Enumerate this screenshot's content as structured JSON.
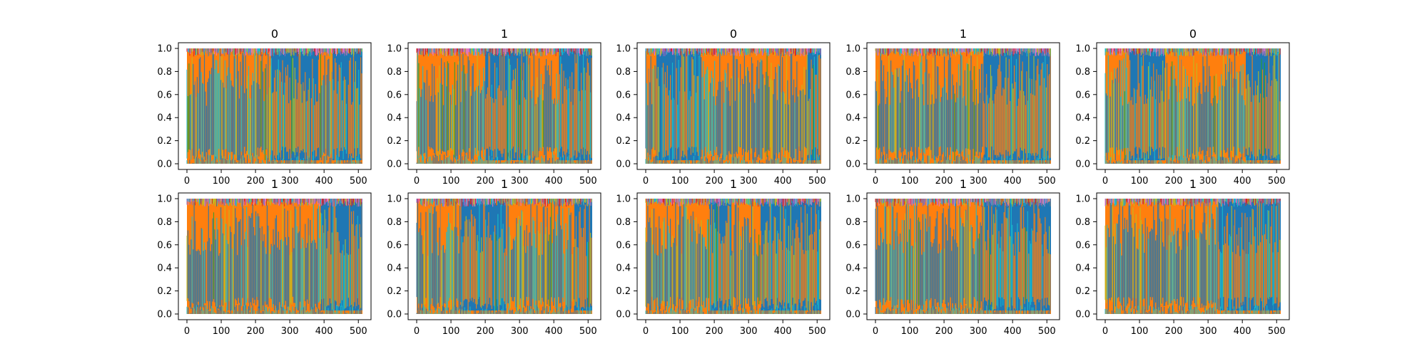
{
  "chart_data": {
    "type": "line",
    "layout": "2x5 grid of small multiples",
    "description_free": true,
    "y_range": [
      0,
      1.05
    ],
    "x_range": [
      -25,
      537
    ],
    "y_ticks": [
      "0.0",
      "0.2",
      "0.4",
      "0.6",
      "0.8",
      "1.0"
    ],
    "x_ticks": [
      "0",
      "100",
      "200",
      "300",
      "400",
      "500"
    ],
    "grid": false,
    "colors": {
      "blue": "#1f77b4",
      "orange": "#ff7f0e",
      "teal": "#17becf",
      "olive": "#bcbd22",
      "green": "#2ca02c",
      "red": "#d62728",
      "purple": "#9467bd",
      "pink": "#e377c2",
      "gray": "#7f7f7f"
    },
    "panels": [
      {
        "title": "0",
        "orange_segments": [
          [
            0,
            245
          ],
          [
            385,
            425
          ]
        ]
      },
      {
        "title": "1",
        "orange_segments": [
          [
            0,
            200
          ],
          [
            320,
            415
          ]
        ]
      },
      {
        "title": "0",
        "orange_segments": [
          [
            0,
            30
          ],
          [
            160,
            470
          ]
        ]
      },
      {
        "title": "1",
        "orange_segments": [
          [
            0,
            315
          ]
        ]
      },
      {
        "title": "0",
        "orange_segments": [
          [
            0,
            70
          ],
          [
            175,
            410
          ]
        ]
      },
      {
        "title": "1",
        "orange_segments": [
          [
            0,
            390
          ]
        ]
      },
      {
        "title": "1",
        "orange_segments": [
          [
            0,
            130
          ],
          [
            260,
            460
          ]
        ]
      },
      {
        "title": "1",
        "orange_segments": [
          [
            0,
            185
          ],
          [
            250,
            335
          ]
        ]
      },
      {
        "title": "1",
        "orange_segments": [
          [
            0,
            315
          ]
        ]
      },
      {
        "title": "1",
        "orange_segments": [
          [
            0,
            330
          ]
        ]
      }
    ]
  }
}
